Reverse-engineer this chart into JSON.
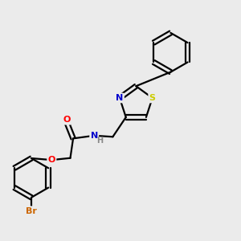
{
  "background_color": "#ebebeb",
  "bond_color": "#000000",
  "atom_colors": {
    "N": "#0000cc",
    "O": "#ff0000",
    "S": "#cccc00",
    "Br": "#cc6600",
    "C": "#000000",
    "H": "#888888"
  },
  "line_width": 1.6,
  "figsize": [
    3.0,
    3.0
  ],
  "dpi": 100
}
